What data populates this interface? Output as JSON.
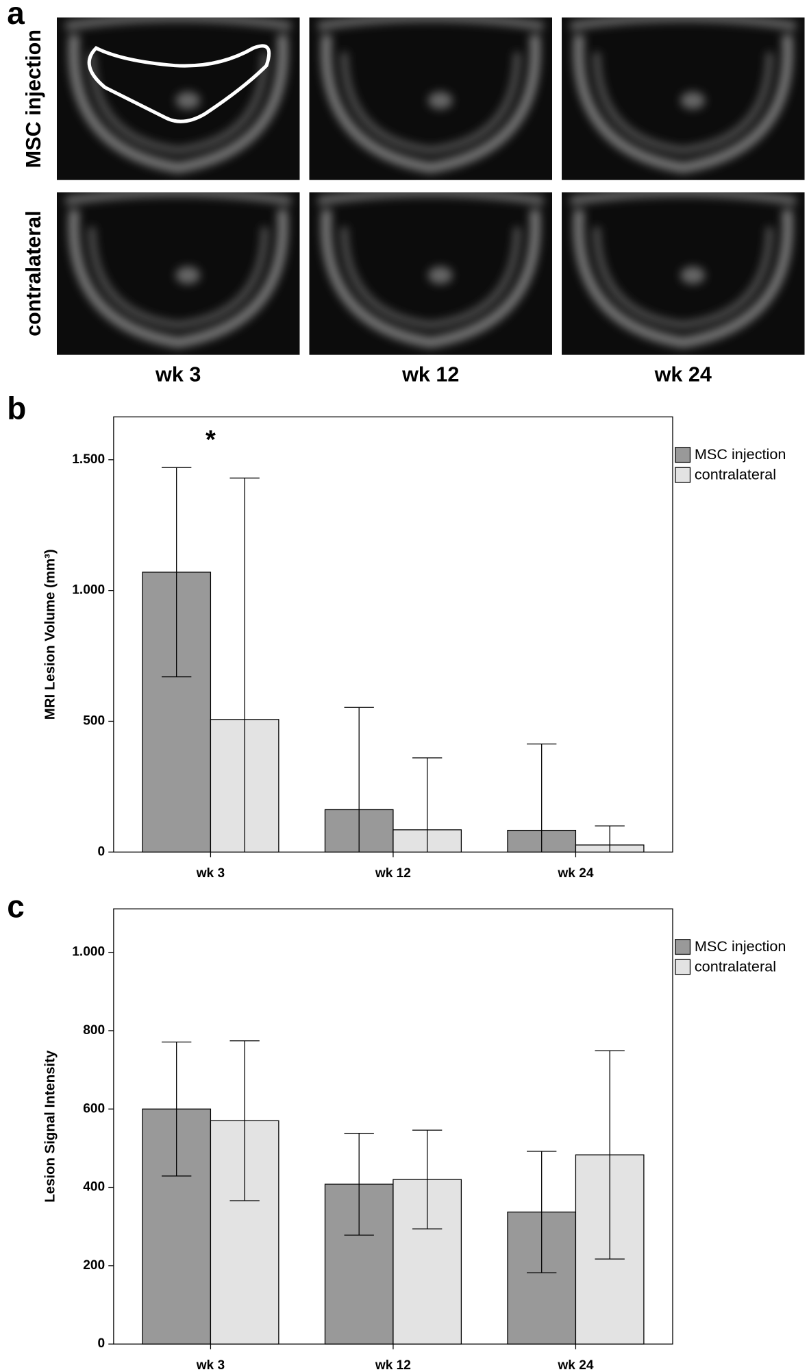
{
  "panel_a": {
    "label": "a",
    "row_labels": [
      "MSC injection",
      "contralateral"
    ],
    "column_labels": [
      "wk 3",
      "wk 12",
      "wk 24"
    ]
  },
  "chart_data": [
    {
      "type": "bar",
      "panel_label": "b",
      "y_label": "MRI Lesion Volume (mm³)",
      "annotation": "*",
      "categories": [
        "wk 3",
        "wk 12",
        "wk 24"
      ],
      "series": [
        {
          "name": "MSC injection",
          "color": "#999999",
          "values": [
            1070,
            162,
            83
          ],
          "errors": [
            400,
            391,
            330
          ]
        },
        {
          "name": "contralateral",
          "color": "#e3e3e3",
          "values": [
            507,
            85,
            27
          ],
          "errors": [
            923,
            275,
            73
          ]
        }
      ],
      "ylim": [
        0,
        1664
      ],
      "yticks": [
        0,
        500,
        {
          "value": 1000,
          "label": "1.000"
        },
        {
          "value": 1500,
          "label": "1.500"
        }
      ]
    },
    {
      "type": "bar",
      "panel_label": "c",
      "y_label": "Lesion Signal Intensity",
      "categories": [
        "wk 3",
        "wk 12",
        "wk 24"
      ],
      "series": [
        {
          "name": "MSC injection",
          "color": "#999999",
          "values": [
            600,
            408,
            337
          ],
          "errors": [
            171,
            130,
            155
          ]
        },
        {
          "name": "contralateral",
          "color": "#e3e3e3",
          "values": [
            570,
            420,
            483
          ],
          "errors": [
            204,
            126,
            266
          ]
        }
      ],
      "ylim": [
        0,
        1111
      ],
      "yticks": [
        0,
        200,
        400,
        600,
        800,
        {
          "value": 1000,
          "label": "1.000"
        }
      ]
    }
  ]
}
